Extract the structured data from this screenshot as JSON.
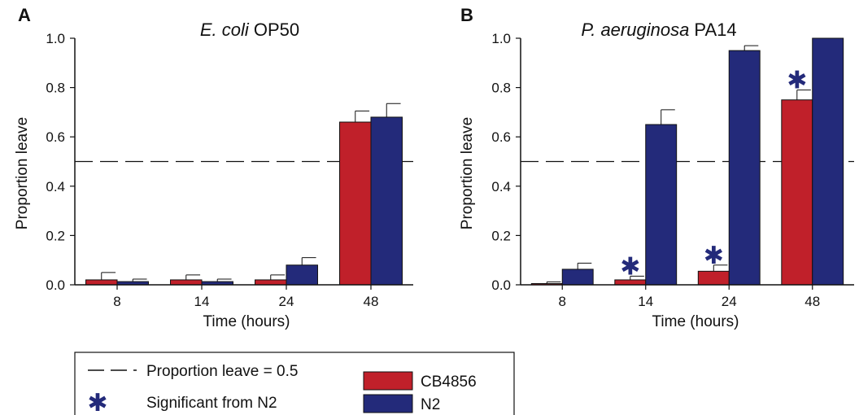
{
  "colors": {
    "series_cb4856": "#c0202a",
    "series_n2": "#232a7a",
    "significance_star": "#232a7a",
    "axis": "#111111"
  },
  "chart_data": [
    {
      "type": "bar",
      "panel_label": "A",
      "title_italic": "E. coli",
      "title_rest": " OP50",
      "xlabel": "Time (hours)",
      "ylabel": "Proportion leave",
      "ylim": [
        0,
        1.0
      ],
      "yticks": [
        "0.0",
        "0.2",
        "0.4",
        "0.6",
        "0.8",
        "1.0"
      ],
      "categories": [
        "8",
        "14",
        "24",
        "48"
      ],
      "reference_line": 0.5,
      "series": [
        {
          "name": "CB4856",
          "values": [
            0.02,
            0.02,
            0.02,
            0.66
          ],
          "errors": [
            0.03,
            0.02,
            0.02,
            0.045
          ]
        },
        {
          "name": "N2",
          "values": [
            0.013,
            0.013,
            0.08,
            0.68
          ],
          "errors": [
            0.01,
            0.01,
            0.03,
            0.055
          ]
        }
      ],
      "significant": []
    },
    {
      "type": "bar",
      "panel_label": "B",
      "title_italic": "P. aeruginosa",
      "title_rest": " PA14",
      "xlabel": "Time (hours)",
      "ylabel": "Proportion leave",
      "ylim": [
        0,
        1.0
      ],
      "yticks": [
        "0.0",
        "0.2",
        "0.4",
        "0.6",
        "0.8",
        "1.0"
      ],
      "categories": [
        "8",
        "14",
        "24",
        "48"
      ],
      "reference_line": 0.5,
      "series": [
        {
          "name": "CB4856",
          "values": [
            0.005,
            0.02,
            0.055,
            0.75
          ],
          "errors": [
            0.007,
            0.015,
            0.025,
            0.04
          ]
        },
        {
          "name": "N2",
          "values": [
            0.063,
            0.65,
            0.95,
            1.0
          ],
          "errors": [
            0.025,
            0.06,
            0.02,
            0.0
          ]
        }
      ],
      "significant": [
        "14",
        "24",
        "48"
      ]
    }
  ],
  "legend": {
    "dashed_label": "Proportion leave = 0.5",
    "star_label": "Significant from N2",
    "star_symbol": "✱",
    "series_labels": [
      "CB4856",
      "N2"
    ]
  }
}
